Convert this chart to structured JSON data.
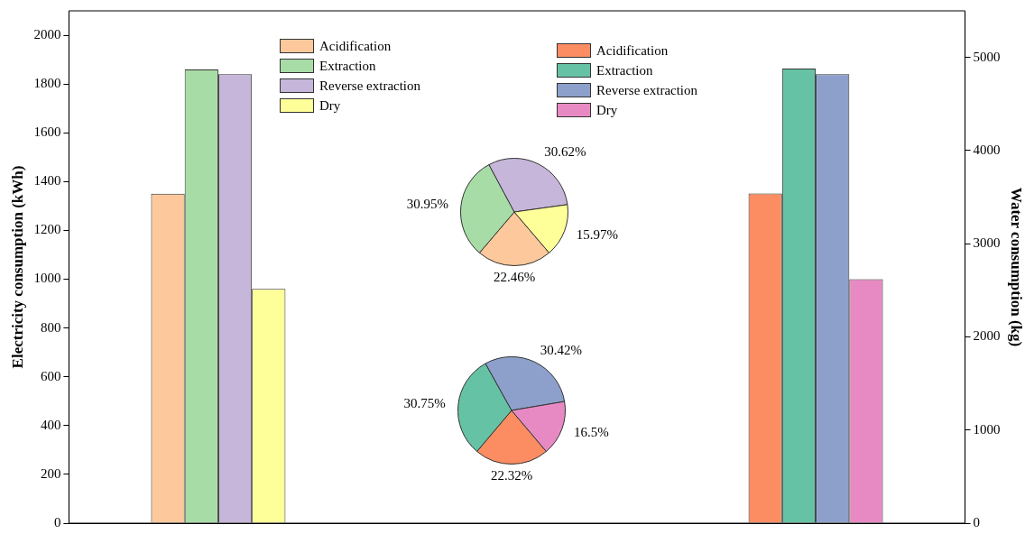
{
  "chart_data": [
    {
      "type": "bar",
      "categories": [
        null,
        null,
        null
      ],
      "ylabel": "Electricity consumption (kWh)",
      "y2label": "Water consumption (kg)",
      "ylim": [
        0,
        2100
      ],
      "yticks": [
        0,
        200,
        400,
        600,
        800,
        1000,
        1200,
        1400,
        1600,
        1800,
        2000
      ],
      "y2lim": [
        0,
        5500
      ],
      "y2ticks": [
        0,
        1000,
        2000,
        3000,
        4000,
        5000
      ],
      "legend": "top",
      "series": [
        {
          "name": "Acidification",
          "color": "#fdc89b",
          "values": [
            1350,
            null,
            null
          ]
        },
        {
          "name": "Extraction",
          "color": "#a8dca6",
          "values": [
            1860,
            null,
            null
          ]
        },
        {
          "name": "Reverse extraction",
          "color": "#c6b6da",
          "values": [
            1840,
            null,
            null
          ]
        },
        {
          "name": "Dry",
          "color": "#ffff99",
          "values": [
            960,
            null,
            null
          ]
        },
        {
          "name": "Acidification",
          "color": "#fc8d62",
          "axis": "y2",
          "values": [
            null,
            null,
            3540
          ]
        },
        {
          "name": "Extraction",
          "color": "#66c2a5",
          "axis": "y2",
          "values": [
            null,
            null,
            4880
          ]
        },
        {
          "name": "Reverse extraction",
          "color": "#8da0cb",
          "axis": "y2",
          "values": [
            null,
            null,
            4820
          ]
        },
        {
          "name": "Dry",
          "color": "#e78ac3",
          "axis": "y2",
          "values": [
            null,
            null,
            2620
          ]
        }
      ]
    },
    {
      "type": "pie",
      "categories": [
        null,
        null,
        null,
        null
      ],
      "values": [
        22.46,
        30.95,
        30.62,
        15.97
      ],
      "colors": [
        "#fdc89b",
        "#a8dca6",
        "#c6b6da",
        "#ffff99"
      ],
      "value_labels": [
        "22.46%",
        "30.95%",
        "30.62%",
        "15.97%"
      ]
    },
    {
      "type": "pie",
      "categories": [
        null,
        null,
        null,
        null
      ],
      "values": [
        22.32,
        30.75,
        30.42,
        16.5
      ],
      "colors": [
        "#fc8d62",
        "#66c2a5",
        "#8da0cb",
        "#e78ac3"
      ],
      "value_labels": [
        "22.32%",
        "30.75%",
        "30.42%",
        "16.5%"
      ]
    }
  ]
}
